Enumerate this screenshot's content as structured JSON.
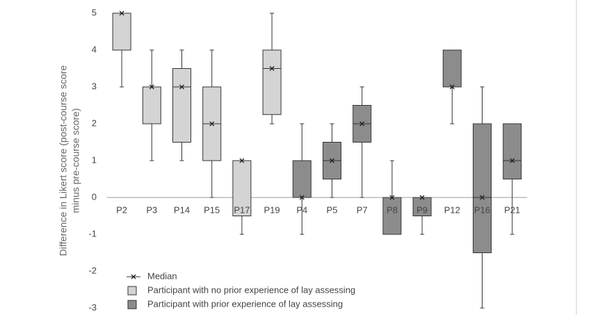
{
  "chart_data": {
    "type": "box",
    "ylabel": [
      "Difference in Likert score (post-course score",
      "minus pre-course score)"
    ],
    "ylim": [
      -3,
      5
    ],
    "yticks": [
      -3,
      -2,
      -1,
      0,
      1,
      2,
      3,
      4,
      5
    ],
    "median_label": "Median",
    "series": [
      {
        "name": "Participant with no prior experience of lay assessing",
        "color": "#d4d4d4",
        "boxes": [
          {
            "category": "P2",
            "min": 3,
            "q1": 4,
            "median": 5,
            "q3": 5,
            "max": 5
          },
          {
            "category": "P3",
            "min": 1,
            "q1": 2,
            "median": 3,
            "q3": 3,
            "max": 4
          },
          {
            "category": "P14",
            "min": 1,
            "q1": 1.5,
            "median": 3,
            "q3": 3.5,
            "max": 4
          },
          {
            "category": "P15",
            "min": 0,
            "q1": 1,
            "median": 2,
            "q3": 3,
            "max": 4
          },
          {
            "category": "P17",
            "min": -1,
            "q1": -0.5,
            "median": 1,
            "q3": 1,
            "max": 1
          },
          {
            "category": "P19",
            "min": 2,
            "q1": 2.25,
            "median": 3.5,
            "q3": 4,
            "max": 5
          }
        ]
      },
      {
        "name": "Participant with prior experience of lay assessing",
        "color": "#8c8c8c",
        "boxes": [
          {
            "category": "P4",
            "min": -1,
            "q1": 0,
            "median": 0,
            "q3": 1,
            "max": 2
          },
          {
            "category": "P5",
            "min": 0,
            "q1": 0.5,
            "median": 1,
            "q3": 1.5,
            "max": 2
          },
          {
            "category": "P7",
            "min": 0,
            "q1": 1.5,
            "median": 2,
            "q3": 2.5,
            "max": 3
          },
          {
            "category": "P8",
            "min": -1,
            "q1": -1,
            "median": 0,
            "q3": 0,
            "max": 1
          },
          {
            "category": "P9",
            "min": -1,
            "q1": -0.5,
            "median": 0,
            "q3": 0,
            "max": 0
          },
          {
            "category": "P12",
            "min": 2,
            "q1": 3,
            "median": 3,
            "q3": 4,
            "max": 4
          },
          {
            "category": "P16",
            "min": -3,
            "q1": -1.5,
            "median": 0,
            "q3": 2,
            "max": 3
          },
          {
            "category": "P21",
            "min": -1,
            "q1": 0.5,
            "median": 1,
            "q3": 2,
            "max": 2
          }
        ]
      }
    ]
  }
}
